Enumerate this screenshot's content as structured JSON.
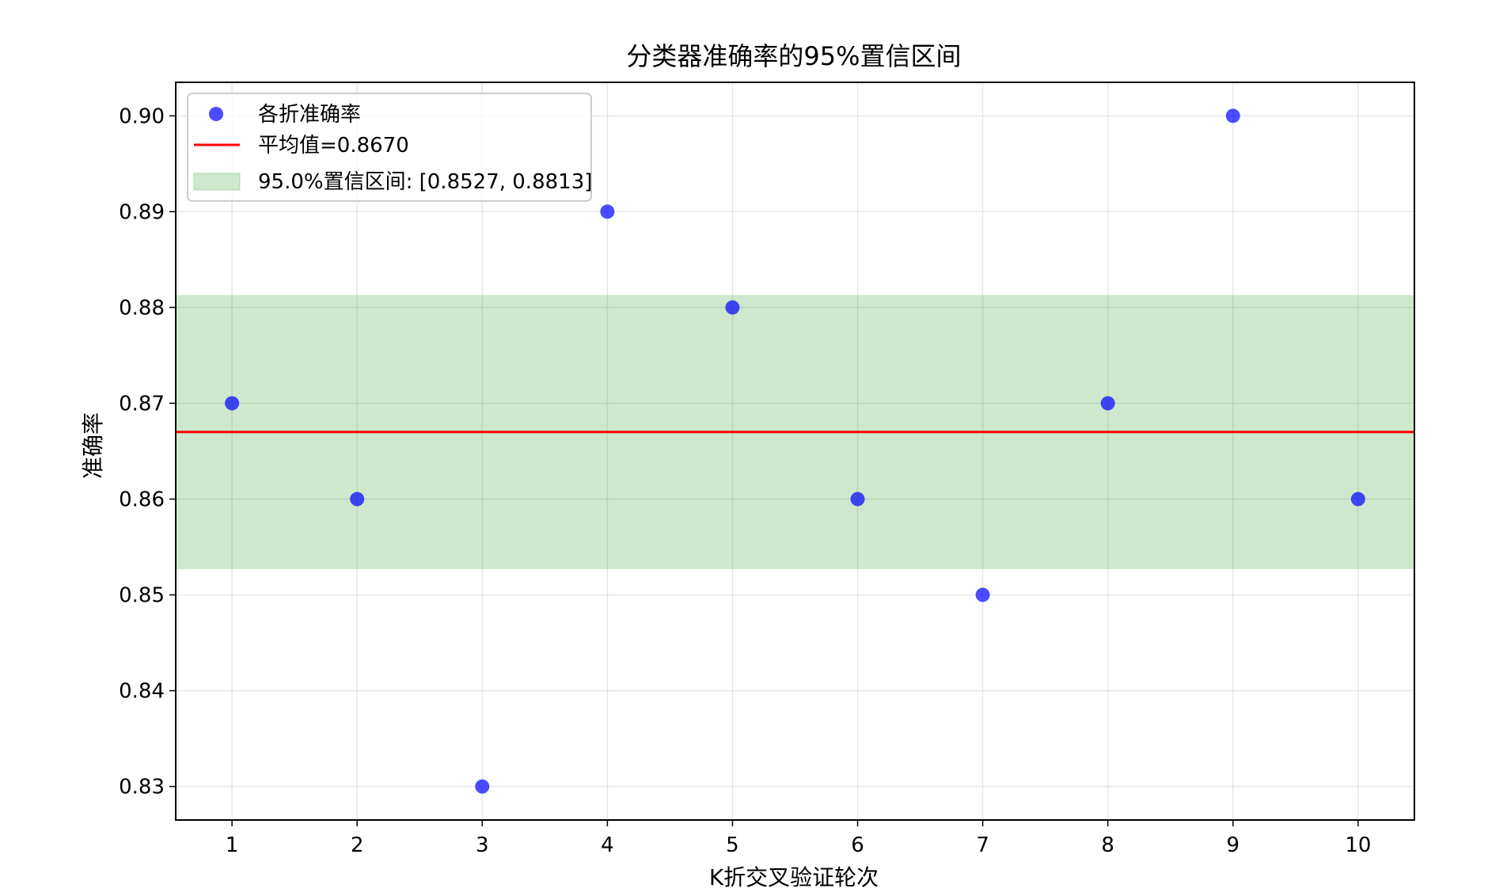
{
  "chart_data": {
    "type": "scatter",
    "title": "分类器准确率的95%置信区间",
    "xlabel": "K折交叉验证轮次",
    "ylabel": "准确率",
    "x": [
      1,
      2,
      3,
      4,
      5,
      6,
      7,
      8,
      9,
      10
    ],
    "series": [
      {
        "name": "各折准确率",
        "values": [
          0.87,
          0.86,
          0.83,
          0.89,
          0.88,
          0.86,
          0.85,
          0.87,
          0.9,
          0.86
        ],
        "color": "#0000ff"
      }
    ],
    "mean": {
      "label": "平均值=0.8670",
      "value": 0.867,
      "color": "#ff0000"
    },
    "confidence_interval": {
      "label": "95.0%置信区间: [0.8527, 0.8813]",
      "lower": 0.8527,
      "upper": 0.8813,
      "color": "#2ca02c"
    },
    "xticks": [
      "1",
      "2",
      "3",
      "4",
      "5",
      "6",
      "7",
      "8",
      "9",
      "10"
    ],
    "yticks": [
      "0.83",
      "0.84",
      "0.85",
      "0.86",
      "0.87",
      "0.88",
      "0.89",
      "0.90"
    ],
    "xlim": [
      0.55,
      10.45
    ],
    "ylim": [
      0.8265,
      0.9035
    ],
    "grid": true,
    "legend_position": "top-left"
  }
}
